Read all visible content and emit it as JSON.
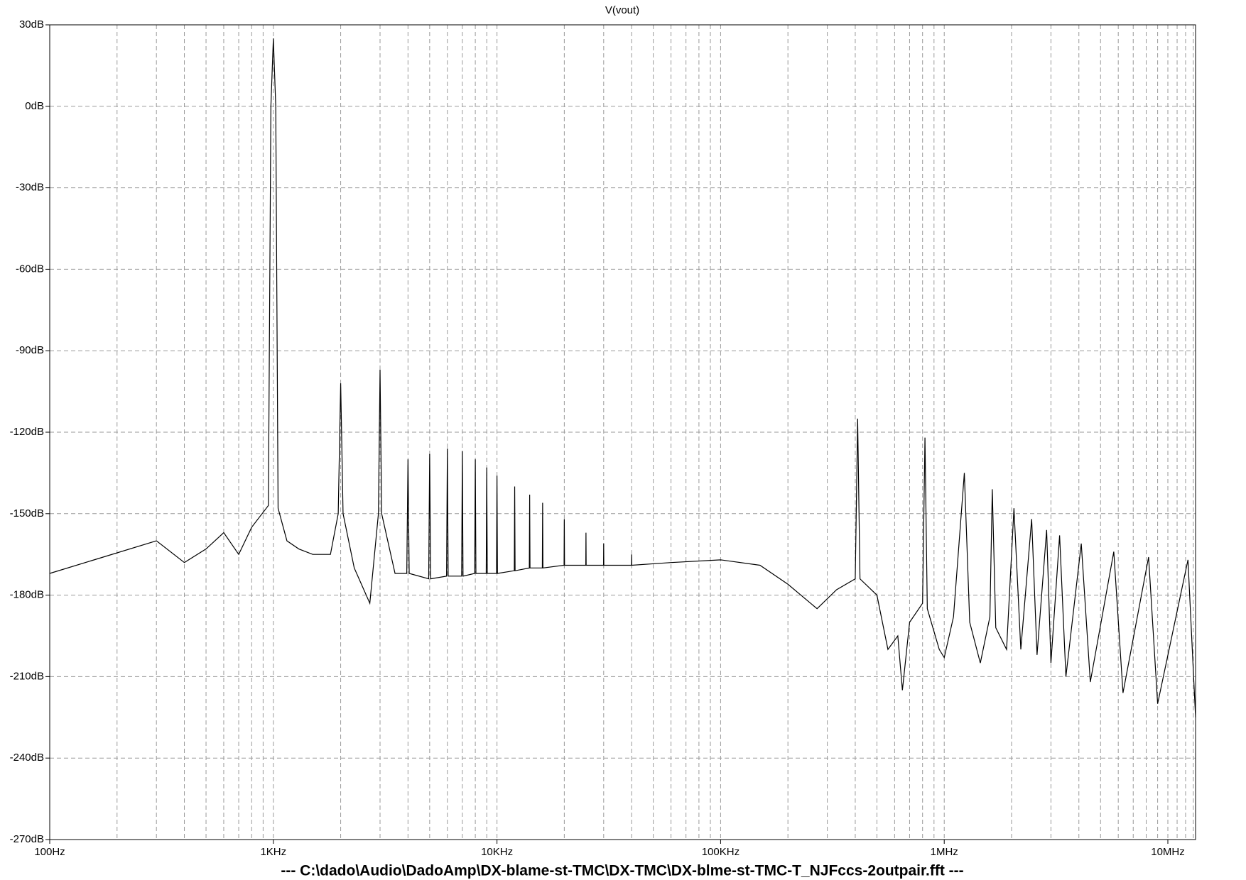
{
  "chart_data": {
    "type": "line",
    "title": "V(vout)",
    "footer": "---  C:\\dado\\Audio\\DadoAmp\\DX-blame-st-TMC\\DX-TMC\\DX-blme-st-TMC-T_NJFccs-2outpair.fft  ---",
    "x": [
      100,
      300,
      400,
      500,
      600,
      700,
      800,
      950,
      975,
      1000,
      1025,
      1050,
      1150,
      1300,
      1500,
      1800,
      1950,
      2000,
      2050,
      2300,
      2700,
      2950,
      3000,
      3050,
      3500,
      3950,
      4000,
      4050,
      4950,
      5000,
      5050,
      5950,
      6000,
      6050,
      6950,
      7000,
      7050,
      7950,
      8000,
      8050,
      8950,
      9000,
      9050,
      9950,
      10000,
      10050,
      11950,
      12000,
      12050,
      13950,
      14000,
      14050,
      15950,
      16000,
      16050,
      19950,
      20000,
      20050,
      24950,
      25000,
      25050,
      29950,
      30000,
      30050,
      39950,
      40000,
      40050,
      60000,
      100000,
      150000,
      200000,
      270000,
      330000,
      400000,
      410000,
      420000,
      500000,
      560000,
      620000,
      650000,
      700000,
      800000,
      820000,
      840000,
      950000,
      1000000,
      1100000,
      1230000,
      1300000,
      1450000,
      1600000,
      1640000,
      1700000,
      1900000,
      2050000,
      2200000,
      2460000,
      2600000,
      2870000,
      3000000,
      3280000,
      3500000,
      4100000,
      4500000,
      5730000,
      6300000,
      8200000,
      9000000,
      12300000,
      13300000
    ],
    "values": [
      -172,
      -160,
      -168,
      -163,
      -157,
      -165,
      -155,
      -147,
      0,
      25,
      0,
      -148,
      -160,
      -163,
      -165,
      -165,
      -150,
      -102,
      -150,
      -170,
      -183,
      -150,
      -97,
      -150,
      -172,
      -172,
      -130,
      -172,
      -174,
      -128,
      -174,
      -173,
      -126,
      -173,
      -173,
      -127,
      -173,
      -172,
      -130,
      -172,
      -172,
      -133,
      -172,
      -172,
      -136,
      -172,
      -171,
      -140,
      -171,
      -170,
      -143,
      -170,
      -170,
      -146,
      -170,
      -169,
      -152,
      -169,
      -169,
      -157,
      -169,
      -169,
      -161,
      -169,
      -169,
      -165,
      -169,
      -168,
      -167,
      -169,
      -176,
      -185,
      -178,
      -174,
      -115,
      -174,
      -180,
      -200,
      -195,
      -215,
      -190,
      -183,
      -122,
      -185,
      -200,
      -203,
      -188,
      -135,
      -190,
      -205,
      -188,
      -141,
      -192,
      -200,
      -148,
      -200,
      -152,
      -202,
      -156,
      -205,
      -158,
      -210,
      -161,
      -212,
      -164,
      -216,
      -166,
      -220,
      -167,
      -225
    ],
    "color": "#000000",
    "log_x": true,
    "xlim": [
      100,
      13300000
    ],
    "ylim": [
      -270,
      30
    ],
    "xticks": [
      {
        "value": 100,
        "label": "100Hz"
      },
      {
        "value": 1000,
        "label": "1KHz"
      },
      {
        "value": 10000,
        "label": "10KHz"
      },
      {
        "value": 100000,
        "label": "100KHz"
      },
      {
        "value": 1000000,
        "label": "1MHz"
      },
      {
        "value": 10000000,
        "label": "10MHz"
      }
    ],
    "xgrid_minor": [
      200,
      300,
      400,
      500,
      600,
      700,
      800,
      900,
      2000,
      3000,
      4000,
      5000,
      6000,
      7000,
      8000,
      9000,
      20000,
      30000,
      40000,
      50000,
      60000,
      70000,
      80000,
      90000,
      200000,
      300000,
      400000,
      500000,
      600000,
      700000,
      800000,
      900000,
      2000000,
      3000000,
      4000000,
      5000000,
      6000000,
      7000000,
      8000000,
      9000000,
      11000000,
      12000000,
      13000000
    ],
    "yticks": [
      {
        "value": 30,
        "label": "30dB"
      },
      {
        "value": 0,
        "label": "0dB"
      },
      {
        "value": -30,
        "label": "-30dB"
      },
      {
        "value": -60,
        "label": "-60dB"
      },
      {
        "value": -90,
        "label": "-90dB"
      },
      {
        "value": -120,
        "label": "-120dB"
      },
      {
        "value": -150,
        "label": "-150dB"
      },
      {
        "value": -180,
        "label": "-180dB"
      },
      {
        "value": -210,
        "label": "-210dB"
      },
      {
        "value": -240,
        "label": "-240dB"
      },
      {
        "value": -270,
        "label": "-270dB"
      }
    ],
    "grid": true
  }
}
